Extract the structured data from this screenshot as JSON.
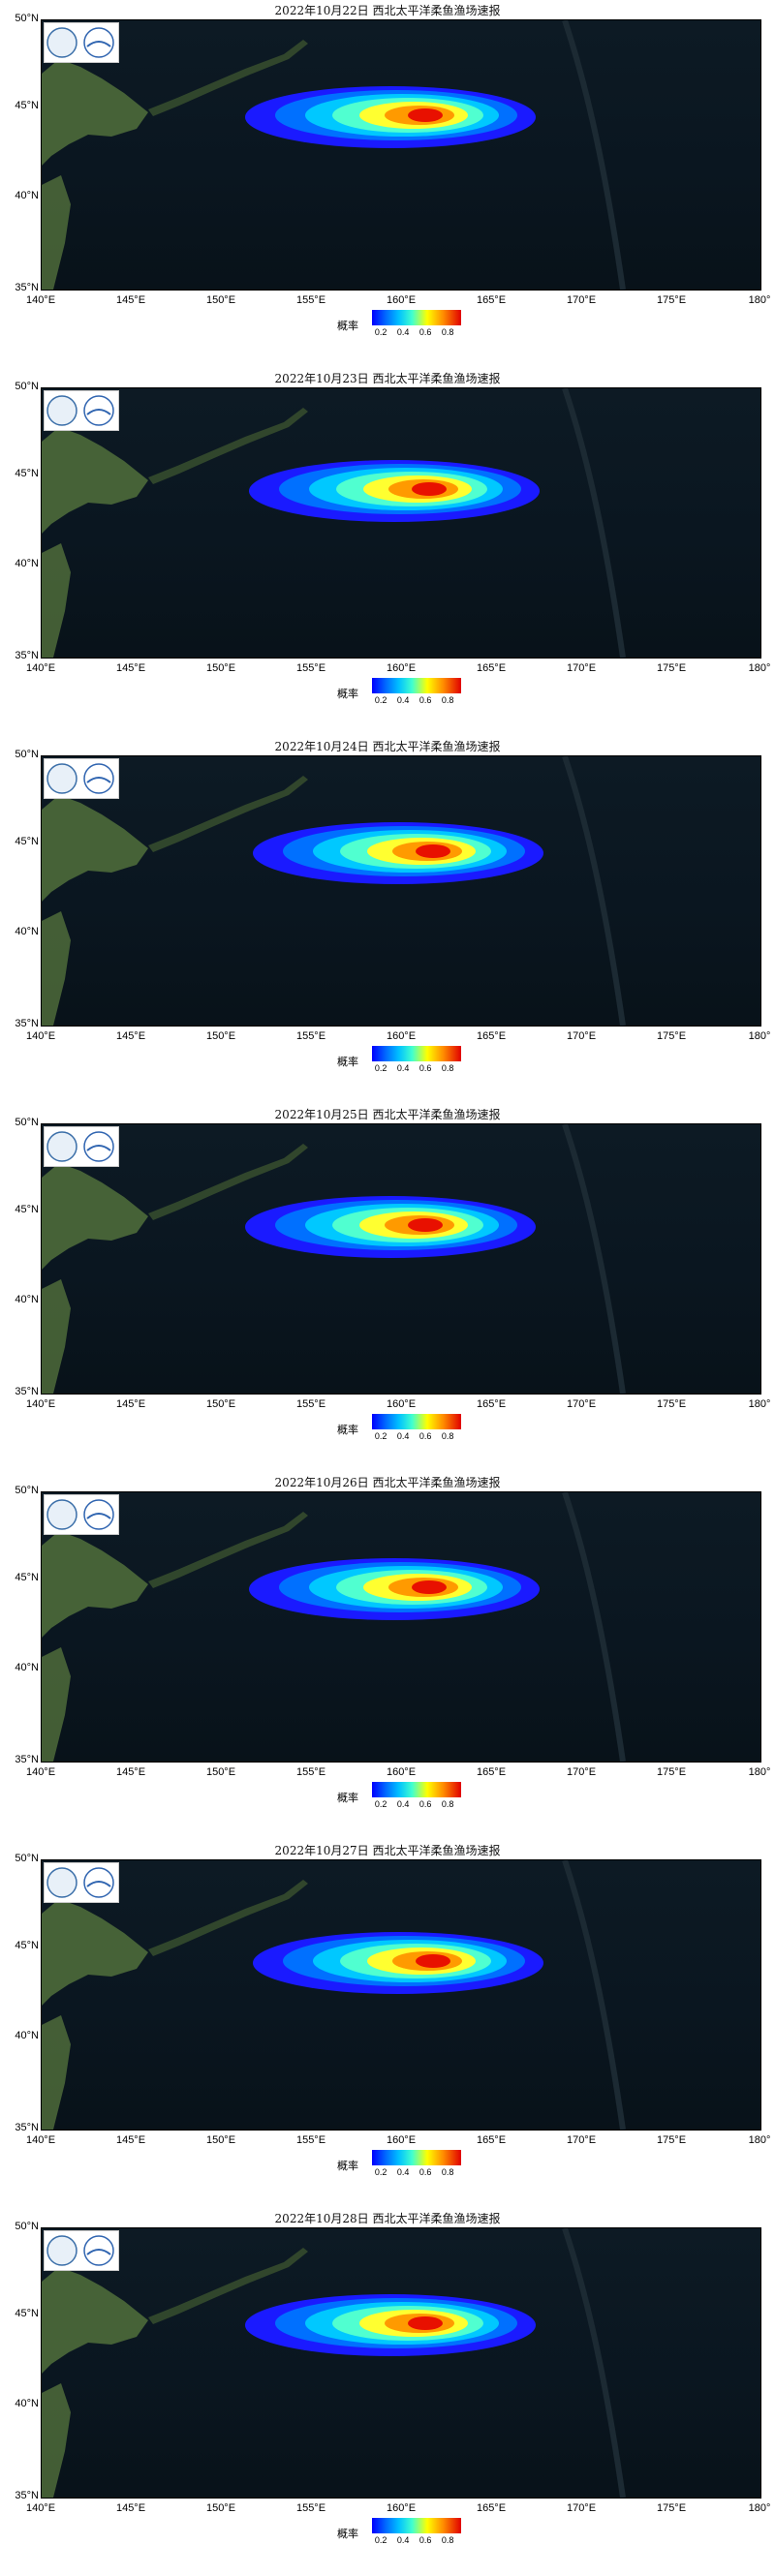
{
  "panels": [
    {
      "title": "2022年10月22日 西北太平洋柔鱼渔场速报"
    },
    {
      "title": "2022年10月23日 西北太平洋柔鱼渔场速报"
    },
    {
      "title": "2022年10月24日 西北太平洋柔鱼渔场速报"
    },
    {
      "title": "2022年10月25日 西北太平洋柔鱼渔场速报"
    },
    {
      "title": "2022年10月26日 西北太平洋柔鱼渔场速报"
    },
    {
      "title": "2022年10月27日 西北太平洋柔鱼渔场速报"
    },
    {
      "title": "2022年10月28日 西北太平洋柔鱼渔场速报"
    }
  ],
  "axes": {
    "lat_labels": [
      "50°N",
      "45°N",
      "40°N",
      "35°N"
    ],
    "lon_labels": [
      "140°E",
      "145°E",
      "150°E",
      "155°E",
      "160°E",
      "165°E",
      "170°E",
      "175°E",
      "180°"
    ]
  },
  "legend": {
    "label": "概率",
    "ticks": [
      "0.2",
      "0.4",
      "0.6",
      "0.8"
    ]
  },
  "colors": {
    "prob_levels": [
      "#1a1aff",
      "#0070ff",
      "#00c8ff",
      "#50ffd0",
      "#ffff30",
      "#ff9a00",
      "#e81000"
    ],
    "ocean": "#0a1620",
    "land": "#4d6a3a"
  }
}
